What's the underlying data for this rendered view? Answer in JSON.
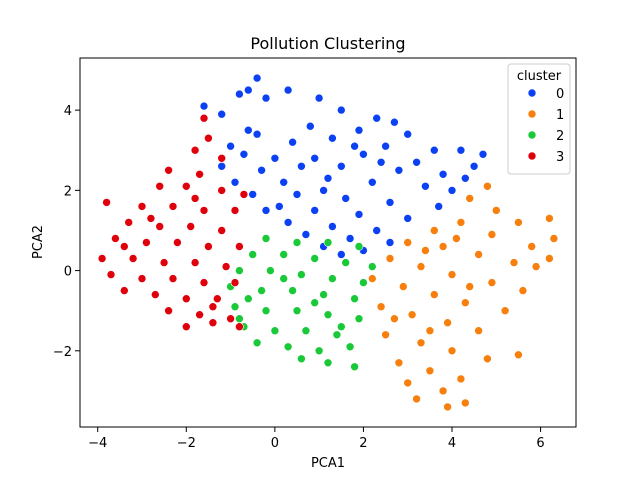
{
  "chart_data": {
    "type": "scatter",
    "title": "Pollution Clustering",
    "xlabel": "PCA1",
    "ylabel": "PCA2",
    "xlim": [
      -4.4,
      6.8
    ],
    "ylim": [
      -3.9,
      5.3
    ],
    "xticks": [
      -4,
      -2,
      0,
      2,
      4,
      6
    ],
    "xtick_labels": [
      "−4",
      "−2",
      "0",
      "2",
      "4",
      "6"
    ],
    "yticks": [
      -2,
      0,
      2,
      4
    ],
    "ytick_labels": [
      "−2",
      "0",
      "2",
      "4"
    ],
    "grid": false,
    "legend": {
      "title": "cluster",
      "placement": "top-right",
      "entries": [
        {
          "label": "0",
          "color": "#0b41f2"
        },
        {
          "label": "1",
          "color": "#f77f0d"
        },
        {
          "label": "2",
          "color": "#1ac938"
        },
        {
          "label": "3",
          "color": "#e0000b"
        }
      ]
    },
    "series": [
      {
        "name": "0",
        "color": "#0b41f2",
        "points": [
          [
            -0.4,
            4.8
          ],
          [
            -0.6,
            4.5
          ],
          [
            0.3,
            4.5
          ],
          [
            -0.8,
            4.4
          ],
          [
            -0.2,
            4.3
          ],
          [
            1.0,
            4.3
          ],
          [
            -1.6,
            4.1
          ],
          [
            1.5,
            4.0
          ],
          [
            -1.2,
            3.9
          ],
          [
            2.3,
            3.8
          ],
          [
            0.8,
            3.6
          ],
          [
            -0.6,
            3.5
          ],
          [
            1.9,
            3.5
          ],
          [
            2.7,
            3.7
          ],
          [
            -0.4,
            3.4
          ],
          [
            1.3,
            3.3
          ],
          [
            -1.0,
            3.1
          ],
          [
            0.4,
            3.2
          ],
          [
            2.5,
            3.1
          ],
          [
            3.6,
            3.0
          ],
          [
            -0.7,
            2.9
          ],
          [
            0.9,
            2.8
          ],
          [
            2.0,
            2.9
          ],
          [
            3.2,
            2.7
          ],
          [
            4.2,
            3.0
          ],
          [
            4.7,
            2.9
          ],
          [
            -0.3,
            2.5
          ],
          [
            0.6,
            2.6
          ],
          [
            1.5,
            2.6
          ],
          [
            2.8,
            2.5
          ],
          [
            3.8,
            2.4
          ],
          [
            4.3,
            2.3
          ],
          [
            -0.9,
            2.2
          ],
          [
            0.2,
            2.2
          ],
          [
            1.2,
            2.3
          ],
          [
            2.2,
            2.2
          ],
          [
            3.4,
            2.1
          ],
          [
            4.0,
            2.0
          ],
          [
            -0.5,
            1.9
          ],
          [
            0.5,
            1.9
          ],
          [
            1.6,
            1.8
          ],
          [
            2.6,
            1.7
          ],
          [
            3.7,
            1.6
          ],
          [
            -0.2,
            1.5
          ],
          [
            0.9,
            1.5
          ],
          [
            1.9,
            1.4
          ],
          [
            3.0,
            1.3
          ],
          [
            0.3,
            1.2
          ],
          [
            1.3,
            1.1
          ],
          [
            2.3,
            1.0
          ],
          [
            0.7,
            0.9
          ],
          [
            1.7,
            0.8
          ],
          [
            2.6,
            0.7
          ],
          [
            1.1,
            0.6
          ],
          [
            2.0,
            0.5
          ],
          [
            1.5,
            0.4
          ],
          [
            -1.2,
            2.6
          ],
          [
            0.0,
            2.8
          ],
          [
            1.8,
            3.1
          ],
          [
            3.0,
            3.4
          ],
          [
            4.5,
            2.6
          ],
          [
            2.4,
            2.7
          ],
          [
            1.1,
            2.0
          ],
          [
            0.1,
            1.6
          ]
        ]
      },
      {
        "name": "1",
        "color": "#f77f0d",
        "points": [
          [
            4.8,
            2.1
          ],
          [
            4.4,
            1.8
          ],
          [
            5.5,
            1.2
          ],
          [
            6.2,
            1.3
          ],
          [
            5.0,
            1.5
          ],
          [
            3.6,
            1.0
          ],
          [
            4.2,
            1.2
          ],
          [
            4.9,
            0.9
          ],
          [
            5.8,
            0.6
          ],
          [
            6.3,
            0.8
          ],
          [
            3.0,
            0.7
          ],
          [
            3.8,
            0.6
          ],
          [
            4.6,
            0.4
          ],
          [
            5.4,
            0.2
          ],
          [
            6.2,
            0.3
          ],
          [
            2.6,
            0.3
          ],
          [
            3.3,
            0.1
          ],
          [
            4.0,
            -0.1
          ],
          [
            4.9,
            -0.3
          ],
          [
            5.6,
            -0.5
          ],
          [
            2.2,
            -0.2
          ],
          [
            2.9,
            -0.4
          ],
          [
            3.6,
            -0.6
          ],
          [
            4.3,
            -0.8
          ],
          [
            5.2,
            -1.0
          ],
          [
            2.4,
            -0.9
          ],
          [
            3.1,
            -1.1
          ],
          [
            3.9,
            -1.3
          ],
          [
            4.6,
            -1.5
          ],
          [
            5.5,
            -2.1
          ],
          [
            2.5,
            -1.6
          ],
          [
            3.3,
            -1.8
          ],
          [
            4.0,
            -2.0
          ],
          [
            4.8,
            -2.2
          ],
          [
            2.8,
            -2.3
          ],
          [
            3.5,
            -2.5
          ],
          [
            4.2,
            -2.7
          ],
          [
            3.0,
            -2.8
          ],
          [
            3.8,
            -3.0
          ],
          [
            3.2,
            -3.2
          ],
          [
            4.3,
            -3.3
          ],
          [
            3.9,
            -3.4
          ],
          [
            3.5,
            -1.5
          ],
          [
            4.4,
            -0.4
          ],
          [
            5.9,
            0.1
          ],
          [
            2.7,
            -1.2
          ],
          [
            3.4,
            0.5
          ],
          [
            4.1,
            0.8
          ]
        ]
      },
      {
        "name": "2",
        "color": "#1ac938",
        "points": [
          [
            -0.2,
            0.8
          ],
          [
            0.5,
            0.7
          ],
          [
            1.2,
            0.7
          ],
          [
            1.9,
            0.6
          ],
          [
            -0.5,
            0.4
          ],
          [
            0.2,
            0.4
          ],
          [
            0.9,
            0.3
          ],
          [
            1.6,
            0.2
          ],
          [
            2.2,
            0.1
          ],
          [
            -0.8,
            0.0
          ],
          [
            -0.1,
            0.0
          ],
          [
            0.6,
            -0.1
          ],
          [
            1.3,
            -0.2
          ],
          [
            2.0,
            -0.3
          ],
          [
            -1.0,
            -0.4
          ],
          [
            -0.3,
            -0.5
          ],
          [
            0.4,
            -0.5
          ],
          [
            1.1,
            -0.6
          ],
          [
            1.8,
            -0.7
          ],
          [
            -0.9,
            -0.9
          ],
          [
            -0.2,
            -1.0
          ],
          [
            0.5,
            -1.0
          ],
          [
            1.2,
            -1.1
          ],
          [
            1.9,
            -1.2
          ],
          [
            -0.7,
            -1.4
          ],
          [
            0.0,
            -1.5
          ],
          [
            0.7,
            -1.5
          ],
          [
            1.4,
            -1.6
          ],
          [
            -0.4,
            -1.8
          ],
          [
            0.3,
            -1.9
          ],
          [
            1.0,
            -2.0
          ],
          [
            1.7,
            -1.9
          ],
          [
            0.6,
            -2.2
          ],
          [
            1.2,
            -2.3
          ],
          [
            1.8,
            -2.4
          ],
          [
            -0.8,
            -1.2
          ],
          [
            0.9,
            -0.8
          ],
          [
            1.5,
            -1.4
          ],
          [
            0.2,
            -0.2
          ],
          [
            -0.6,
            -0.7
          ]
        ]
      },
      {
        "name": "3",
        "color": "#e0000b",
        "points": [
          [
            -1.6,
            3.8
          ],
          [
            -1.5,
            3.3
          ],
          [
            -1.8,
            3.0
          ],
          [
            -1.2,
            2.8
          ],
          [
            -2.4,
            2.5
          ],
          [
            -1.7,
            2.4
          ],
          [
            -2.6,
            2.1
          ],
          [
            -2.0,
            2.1
          ],
          [
            -1.2,
            2.0
          ],
          [
            -3.8,
            1.7
          ],
          [
            -3.0,
            1.6
          ],
          [
            -2.3,
            1.6
          ],
          [
            -1.6,
            1.5
          ],
          [
            -0.9,
            1.5
          ],
          [
            -3.3,
            1.2
          ],
          [
            -2.6,
            1.1
          ],
          [
            -1.9,
            1.1
          ],
          [
            -1.2,
            1.0
          ],
          [
            -3.6,
            0.8
          ],
          [
            -2.9,
            0.7
          ],
          [
            -2.2,
            0.7
          ],
          [
            -1.5,
            0.6
          ],
          [
            -0.8,
            0.6
          ],
          [
            -3.9,
            0.3
          ],
          [
            -3.2,
            0.3
          ],
          [
            -2.5,
            0.2
          ],
          [
            -1.8,
            0.2
          ],
          [
            -1.1,
            0.1
          ],
          [
            -3.7,
            -0.1
          ],
          [
            -3.0,
            -0.2
          ],
          [
            -2.3,
            -0.2
          ],
          [
            -1.6,
            -0.3
          ],
          [
            -0.9,
            -0.3
          ],
          [
            -3.4,
            -0.5
          ],
          [
            -2.7,
            -0.6
          ],
          [
            -2.0,
            -0.7
          ],
          [
            -1.3,
            -0.7
          ],
          [
            -2.4,
            -1.0
          ],
          [
            -1.7,
            -1.1
          ],
          [
            -1.0,
            -1.2
          ],
          [
            -2.0,
            -1.4
          ],
          [
            -1.4,
            -1.3
          ],
          [
            -0.8,
            -1.4
          ],
          [
            -1.8,
            1.8
          ],
          [
            -2.8,
            1.3
          ],
          [
            -0.7,
            1.9
          ],
          [
            -1.4,
            -0.9
          ],
          [
            -3.4,
            0.6
          ]
        ]
      }
    ]
  }
}
